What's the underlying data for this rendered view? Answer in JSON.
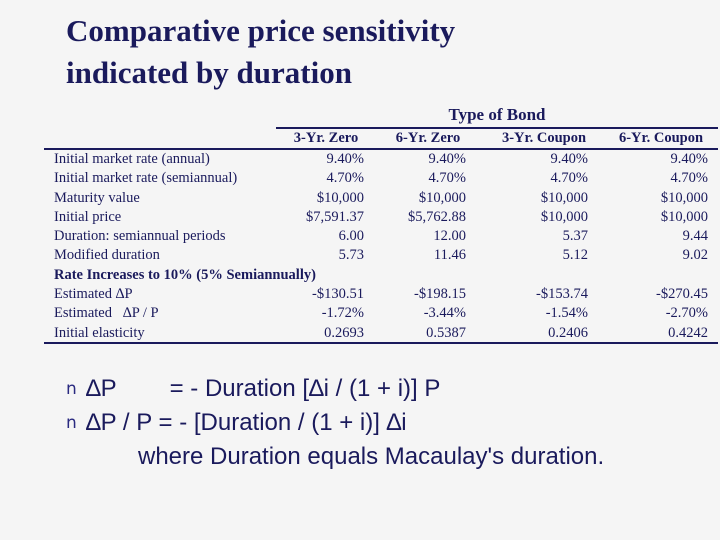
{
  "title": {
    "line1": "Comparative price sensitivity",
    "line2": "indicated by duration"
  },
  "table": {
    "group_header": "Type of Bond",
    "columns": [
      "3-Yr. Zero",
      "6-Yr. Zero",
      "3-Yr. Coupon",
      "6-Yr. Coupon"
    ],
    "rows": [
      {
        "label": "Initial market rate (annual)",
        "values": [
          "9.40%",
          "9.40%",
          "9.40%",
          "9.40%"
        ]
      },
      {
        "label": "Initial market rate (semiannual)",
        "values": [
          "4.70%",
          "4.70%",
          "4.70%",
          "4.70%"
        ]
      },
      {
        "label": "Maturity value",
        "values": [
          "$10,000",
          "$10,000",
          "$10,000",
          "$10,000"
        ]
      },
      {
        "label": "Initial price",
        "values": [
          "$7,591.37",
          "$5,762.88",
          "$10,000",
          "$10,000"
        ]
      },
      {
        "label": "Duration: semiannual periods",
        "values": [
          "6.00",
          "12.00",
          "5.37",
          "9.44"
        ]
      },
      {
        "label": "Modified duration",
        "values": [
          "5.73",
          "11.46",
          "5.12",
          "9.02"
        ]
      },
      {
        "label": "Rate Increases to 10% (5% Semiannually)",
        "section": true,
        "values": [
          "",
          "",
          "",
          ""
        ]
      },
      {
        "label": "Estimated ∆P",
        "values": [
          "-$130.51",
          "-$198.15",
          "-$153.74",
          "-$270.45"
        ]
      },
      {
        "label": "Estimated   ∆P / P",
        "values": [
          "-1.72%",
          "-3.44%",
          "-1.54%",
          "-2.70%"
        ]
      },
      {
        "label": "Initial elasticity",
        "values": [
          "0.2693",
          "0.5387",
          "0.2406",
          "0.4242"
        ]
      }
    ]
  },
  "bullets": {
    "marker": "n",
    "items": [
      "∆P        = - Duration [∆i / (1 + i)] P",
      "∆P / P = - [Duration / (1 + i)] ∆i"
    ],
    "continuation": "where Duration equals Macaulay's duration."
  }
}
